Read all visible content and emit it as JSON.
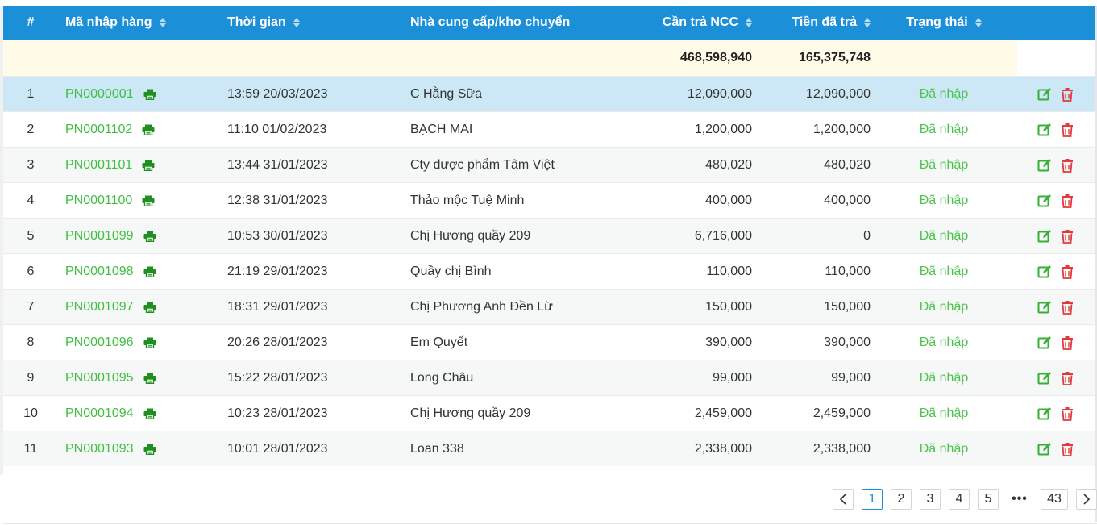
{
  "columns": {
    "index": "#",
    "code": "Mã nhập hàng",
    "time": "Thời gian",
    "supplier": "Nhà cung cấp/kho chuyển",
    "amount_due": "Cần trả NCC",
    "amount_paid": "Tiền đã trả",
    "status": "Trạng thái"
  },
  "totals": {
    "amount_due": "468,598,940",
    "amount_paid": "165,375,748"
  },
  "rows": [
    {
      "index": "1",
      "code": "PN0000001",
      "time": "13:59 20/03/2023",
      "supplier": "C Hằng Sữa",
      "amount_due": "12,090,000",
      "amount_paid": "12,090,000",
      "status": "Đã nhập"
    },
    {
      "index": "2",
      "code": "PN0001102",
      "time": "11:10 01/02/2023",
      "supplier": "BẠCH MAI",
      "amount_due": "1,200,000",
      "amount_paid": "1,200,000",
      "status": "Đã nhập"
    },
    {
      "index": "3",
      "code": "PN0001101",
      "time": "13:44 31/01/2023",
      "supplier": "Cty dược phẩm Tâm Việt",
      "amount_due": "480,020",
      "amount_paid": "480,020",
      "status": "Đã nhập"
    },
    {
      "index": "4",
      "code": "PN0001100",
      "time": "12:38 31/01/2023",
      "supplier": "Thảo mộc Tuệ Minh",
      "amount_due": "400,000",
      "amount_paid": "400,000",
      "status": "Đã nhập"
    },
    {
      "index": "5",
      "code": "PN0001099",
      "time": "10:53 30/01/2023",
      "supplier": "Chị Hương quầy 209",
      "amount_due": "6,716,000",
      "amount_paid": "0",
      "status": "Đã nhập"
    },
    {
      "index": "6",
      "code": "PN0001098",
      "time": "21:19 29/01/2023",
      "supplier": "Quầy chị Bình",
      "amount_due": "110,000",
      "amount_paid": "110,000",
      "status": "Đã nhập"
    },
    {
      "index": "7",
      "code": "PN0001097",
      "time": "18:31 29/01/2023",
      "supplier": "Chị Phương Anh Đền Lừ",
      "amount_due": "150,000",
      "amount_paid": "150,000",
      "status": "Đã nhập"
    },
    {
      "index": "8",
      "code": "PN0001096",
      "time": "20:26 28/01/2023",
      "supplier": "Em Quyết",
      "amount_due": "390,000",
      "amount_paid": "390,000",
      "status": "Đã nhập"
    },
    {
      "index": "9",
      "code": "PN0001095",
      "time": "15:22 28/01/2023",
      "supplier": "Long Châu",
      "amount_due": "99,000",
      "amount_paid": "99,000",
      "status": "Đã nhập"
    },
    {
      "index": "10",
      "code": "PN0001094",
      "time": "10:23 28/01/2023",
      "supplier": "Chị Hương quầy 209",
      "amount_due": "2,459,000",
      "amount_paid": "2,459,000",
      "status": "Đã nhập"
    },
    {
      "index": "11",
      "code": "PN0001093",
      "time": "10:01 28/01/2023",
      "supplier": "Loan 338",
      "amount_due": "2,338,000",
      "amount_paid": "2,338,000",
      "status": "Đã nhập"
    }
  ],
  "pagination": {
    "prev_icon": "chevron-left-icon",
    "next_icon": "chevron-right-icon",
    "pages": [
      "1",
      "2",
      "3",
      "4",
      "5"
    ],
    "ellipsis": "•••",
    "last_page": "43",
    "current": "1"
  },
  "icons": {
    "print": "printer-icon",
    "edit": "edit-icon",
    "delete": "trash-icon",
    "sort": "sort-icon"
  },
  "colors": {
    "header_bg": "#1c8fd9",
    "link": "#3fbf3f",
    "status": "#4cc44c",
    "selected_row": "#cce8f7",
    "summary_bg": "#fffbe8",
    "delete": "#e03a3a",
    "print": "#1f8f1f"
  }
}
